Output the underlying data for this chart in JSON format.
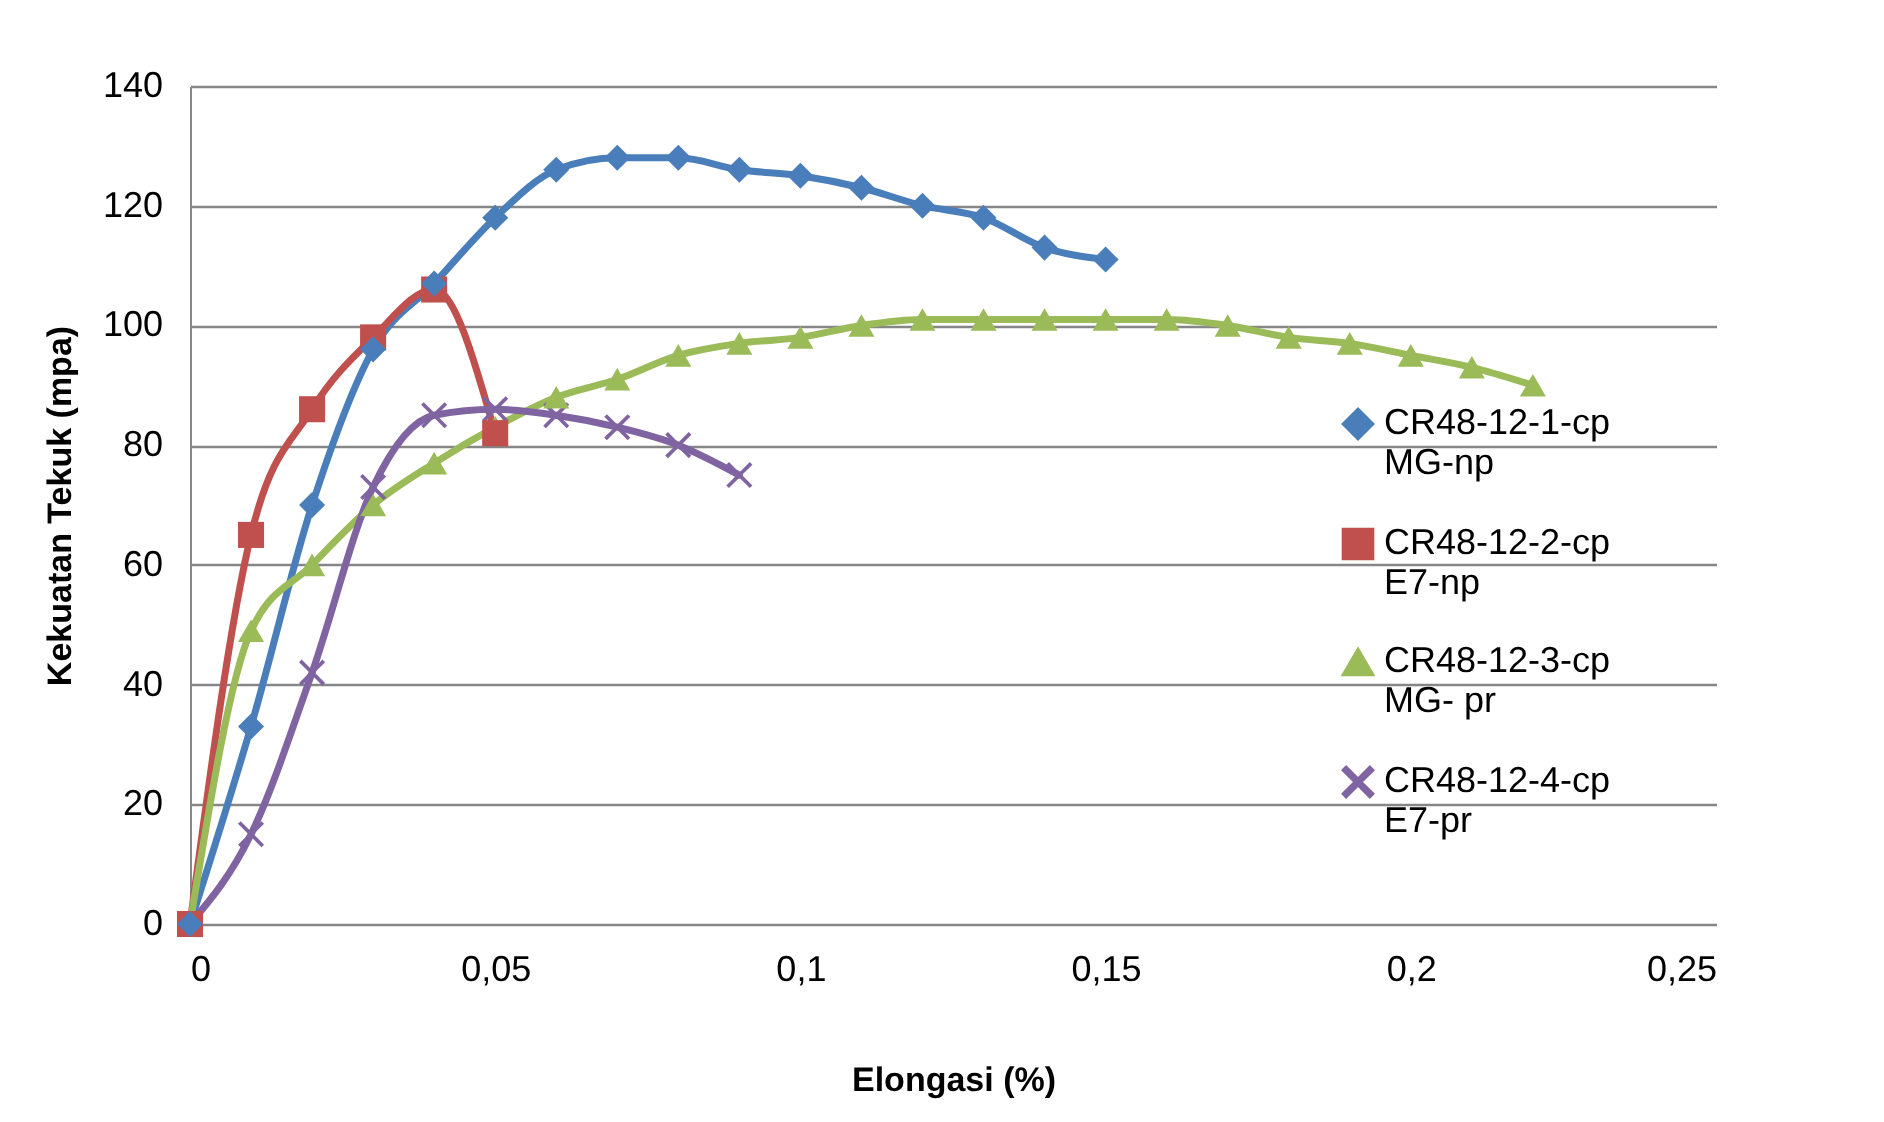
{
  "chart_data": {
    "type": "line",
    "xlabel": "Elongasi (%)",
    "ylabel": "Kekuatan Tekuk (mpa)",
    "xlim": [
      0,
      0.25
    ],
    "ylim": [
      0,
      140
    ],
    "xticks": [
      0,
      {
        "value": 0.05,
        "label": "0,05"
      },
      {
        "value": 0.1,
        "label": "0,1"
      },
      {
        "value": 0.15,
        "label": "0,15"
      },
      {
        "value": 0.2,
        "label": "0,2"
      },
      {
        "value": 0.25,
        "label": "0,25"
      }
    ],
    "yticks": [
      0,
      20,
      40,
      60,
      80,
      100,
      120,
      140
    ],
    "grid": "y",
    "legend": "right",
    "line_style": "solid",
    "series": [
      {
        "name": "CR48-12-1-cp MG-np",
        "color": "#4a7ebb",
        "marker": "diamond",
        "x": [
          0,
          0.01,
          0.02,
          0.03,
          0.04,
          0.05,
          0.06,
          0.07,
          0.08,
          0.09,
          0.1,
          0.11,
          0.12,
          0.13,
          0.14,
          0.15
        ],
        "values": [
          0,
          33,
          70,
          96,
          107,
          118,
          126,
          128,
          128,
          126,
          125,
          123,
          120,
          118,
          113,
          111
        ]
      },
      {
        "name": "CR48-12-2-cp E7-np",
        "color": "#c0504d",
        "marker": "square",
        "x": [
          0,
          0.01,
          0.02,
          0.03,
          0.04,
          0.05
        ],
        "values": [
          0,
          65,
          86,
          98,
          106,
          82
        ]
      },
      {
        "name": "CR48-12-3-cp MG- pr",
        "color": "#9bbb59",
        "marker": "triangle",
        "x": [
          0,
          0.01,
          0.02,
          0.03,
          0.04,
          0.05,
          0.06,
          0.07,
          0.08,
          0.09,
          0.1,
          0.11,
          0.12,
          0.13,
          0.14,
          0.15,
          0.16,
          0.17,
          0.18,
          0.19,
          0.2,
          0.21,
          0.22
        ],
        "values": [
          0,
          49,
          60,
          70,
          77,
          83,
          88,
          91,
          95,
          97,
          98,
          100,
          101,
          101,
          101,
          101,
          101,
          100,
          98,
          97,
          95,
          93,
          90
        ]
      },
      {
        "name": "CR48-12-4-cp E7-pr",
        "color": "#8064a2",
        "marker": "cross",
        "x": [
          0,
          0.01,
          0.02,
          0.03,
          0.04,
          0.05,
          0.06,
          0.07,
          0.08,
          0.09
        ],
        "values": [
          0,
          15,
          42,
          73,
          85,
          86,
          85,
          83,
          80,
          75
        ]
      }
    ]
  }
}
